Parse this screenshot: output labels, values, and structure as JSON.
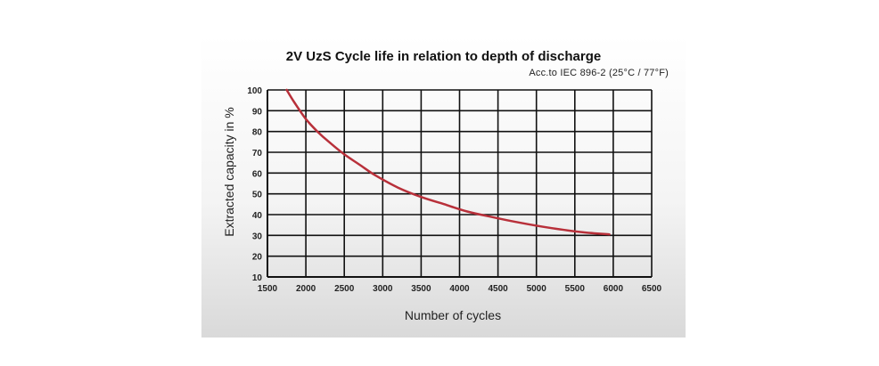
{
  "chart_data": {
    "type": "line",
    "title": "2V UzS Cycle life in relation to depth of discharge",
    "subtitle": "Acc.to IEC 896-2 (25°C / 77°F)",
    "xlabel": "Number of cycles",
    "ylabel": "Extracted capacity in %",
    "xlim": [
      1500,
      6500
    ],
    "ylim": [
      10,
      100
    ],
    "xticks": [
      1500,
      2000,
      2500,
      3000,
      3500,
      4000,
      4500,
      5000,
      5500,
      6000,
      6500
    ],
    "yticks": [
      10,
      20,
      30,
      40,
      50,
      60,
      70,
      80,
      90,
      100
    ],
    "grid": true,
    "line_color": "#b8303a",
    "series": [
      {
        "x": [
          1750,
          1850,
          2000,
          2150,
          2300,
          2500,
          2700,
          2900,
          3200,
          3500,
          3800,
          4100,
          4400,
          4800,
          5200,
          5600,
          5950
        ],
        "y": [
          100,
          94,
          86,
          80,
          75,
          69,
          64,
          59,
          53,
          48.5,
          45,
          41.5,
          39,
          36,
          33.5,
          31.5,
          30.5
        ]
      }
    ]
  }
}
